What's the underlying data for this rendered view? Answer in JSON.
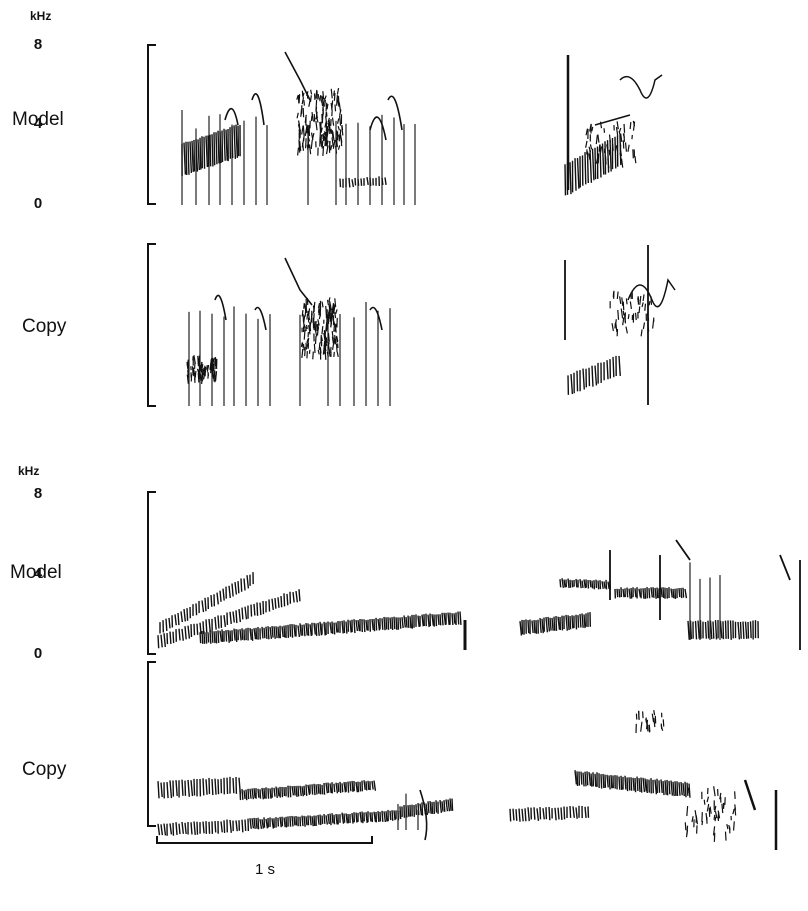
{
  "figure": {
    "panels": [
      {
        "unit": "kHz",
        "ticks": [
          8,
          4,
          0
        ],
        "rows": [
          {
            "label": "Model"
          },
          {
            "label": "Copy"
          }
        ]
      },
      {
        "unit": "kHz",
        "ticks": [
          8,
          4,
          0
        ],
        "rows": [
          {
            "label": "Model"
          },
          {
            "label": "Copy"
          }
        ]
      }
    ],
    "scale_bar": "1 s"
  }
}
